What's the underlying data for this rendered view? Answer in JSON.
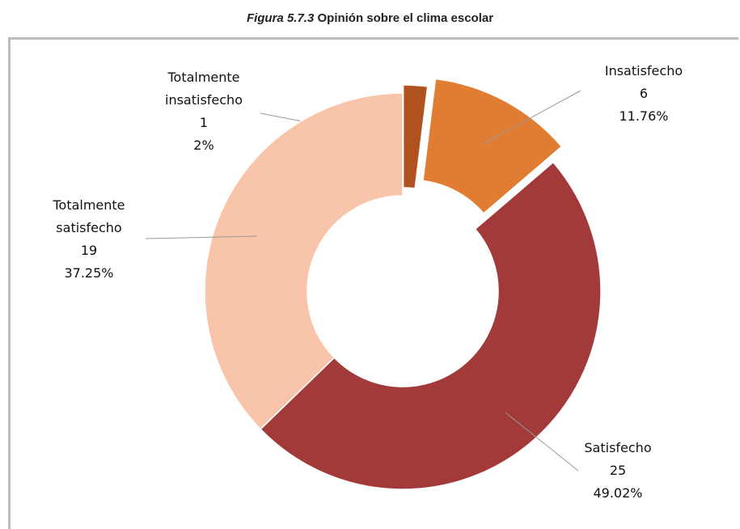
{
  "chart_data": {
    "type": "donut",
    "title": [
      "Figura 5.7.3",
      "Opinión sobre el clima escolar"
    ],
    "categories": [
      "Totalmente insatisfecho",
      "Insatisfecho",
      "Satisfecho",
      "Totalmente satisfecho"
    ],
    "values": [
      1,
      6,
      25,
      19
    ],
    "percent_labels": [
      "2%",
      "11.76%",
      "49.02%",
      "37.25%"
    ],
    "colors": [
      "#b0521f",
      "#e07d33",
      "#a23a3a",
      "#f8c4aa"
    ],
    "exploded": [
      true,
      true,
      false,
      false
    ]
  }
}
